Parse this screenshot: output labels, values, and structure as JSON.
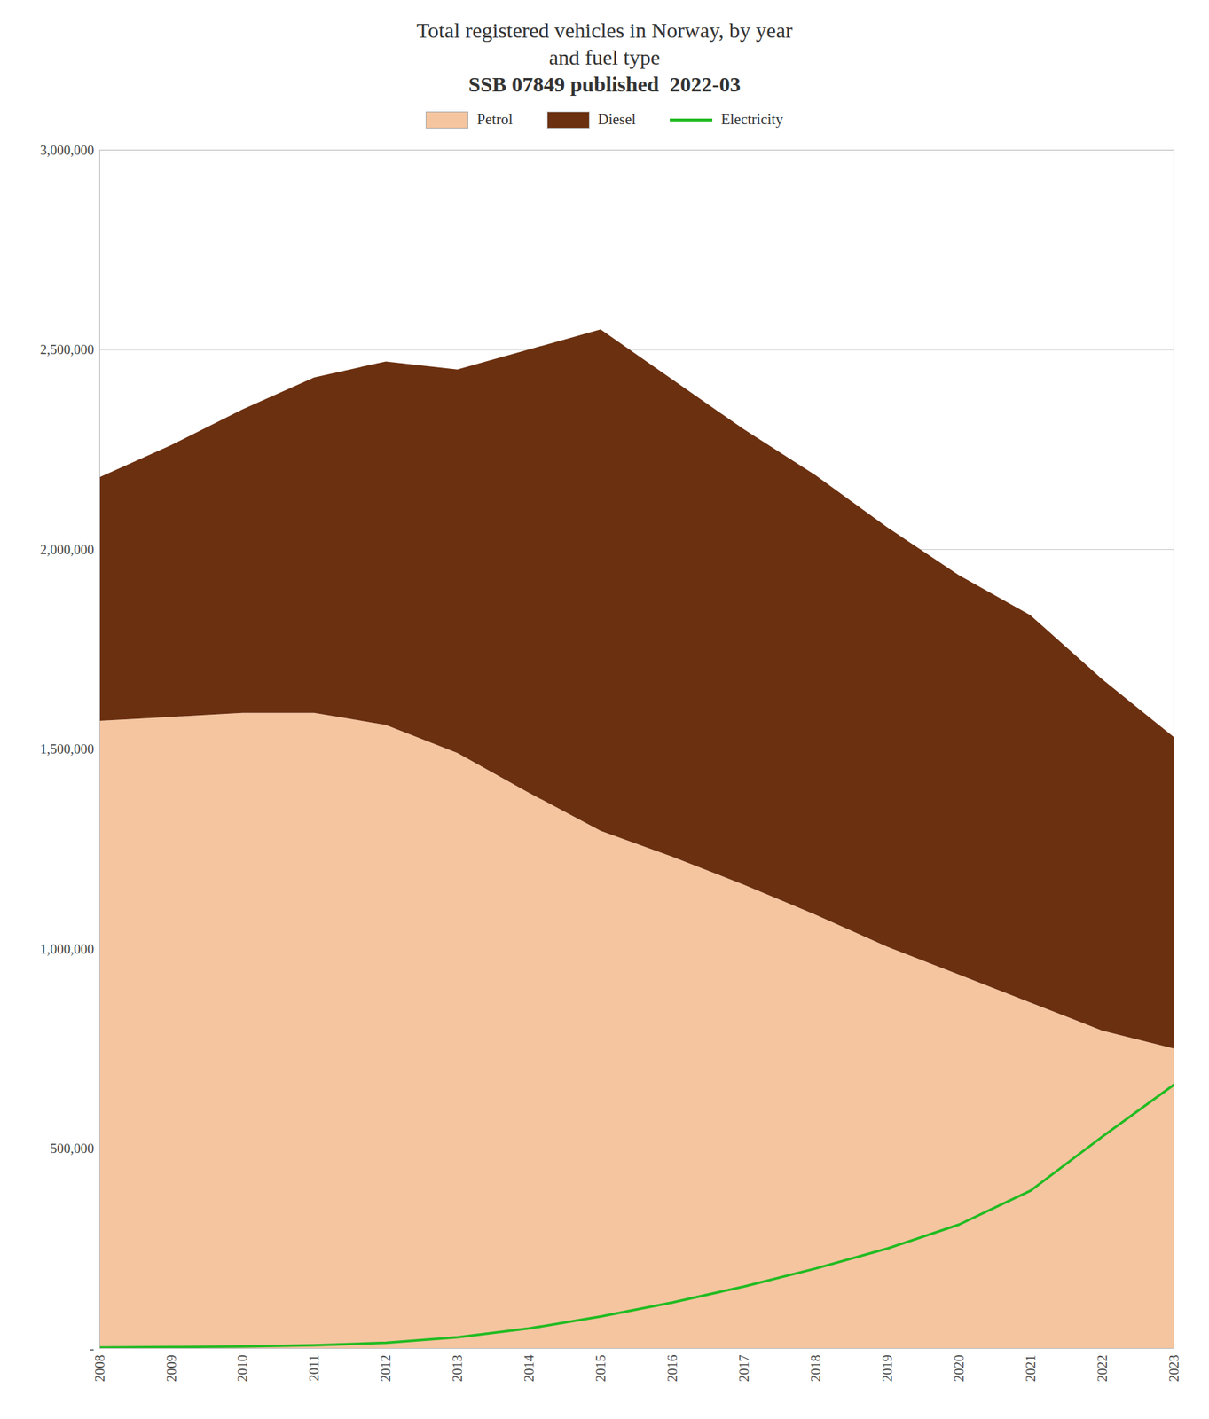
{
  "chart_data": {
    "type": "area",
    "title": "Total registered vehicles in Norway, by year\nand fuel type",
    "subtitle": "SSB 07849 published  2022-03",
    "x": [
      2008,
      2009,
      2010,
      2011,
      2012,
      2013,
      2014,
      2015,
      2016,
      2017,
      2018,
      2019,
      2020,
      2021,
      2022,
      2023
    ],
    "series": [
      {
        "name": "Petrol",
        "type": "area",
        "color": "#F5C5A0",
        "values": [
          1570000,
          1580000,
          1590000,
          1590000,
          1560000,
          1490000,
          1390000,
          1295000,
          1230000,
          1160000,
          1085000,
          1005000,
          935000,
          865000,
          795000,
          750000
        ]
      },
      {
        "name": "Diesel",
        "type": "area",
        "color": "#6B3010",
        "values": [
          610000,
          680000,
          760000,
          840000,
          910000,
          960000,
          1110000,
          1255000,
          1195000,
          1140000,
          1100000,
          1050000,
          1000000,
          970000,
          880000,
          780000
        ]
      },
      {
        "name": "Electricity",
        "type": "line",
        "color": "#22BB22",
        "values": [
          2000,
          3500,
          5000,
          8000,
          14000,
          28000,
          50000,
          80000,
          115000,
          155000,
          200000,
          250000,
          310000,
          395000,
          530000,
          660000
        ]
      }
    ],
    "stacked": true,
    "xlim": [
      2008,
      2023
    ],
    "xticks": [
      2008,
      2009,
      2010,
      2011,
      2012,
      2013,
      2014,
      2015,
      2016,
      2017,
      2018,
      2019,
      2020,
      2021,
      2022,
      2023
    ],
    "ylim": [
      0,
      3000000
    ],
    "yticks": [
      {
        "value": 0,
        "label": "-"
      },
      {
        "value": 500000,
        "label": "500,000"
      },
      {
        "value": 1000000,
        "label": "1,000,000"
      },
      {
        "value": 1500000,
        "label": "1,500,000"
      },
      {
        "value": 2000000,
        "label": "2,000,000"
      },
      {
        "value": 2500000,
        "label": "2,500,000"
      },
      {
        "value": 3000000,
        "label": "3,000,000"
      }
    ],
    "grid": true,
    "legend": "top"
  }
}
